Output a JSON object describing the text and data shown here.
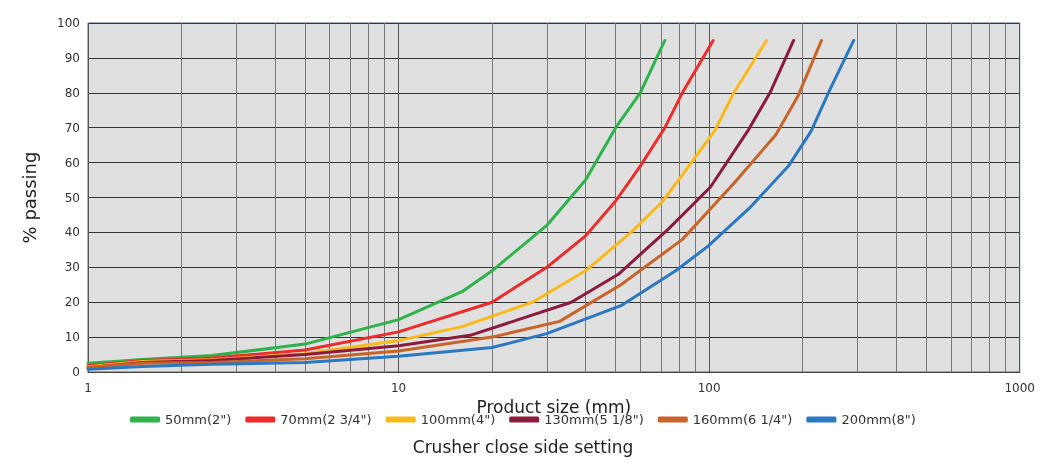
{
  "chart_data": {
    "type": "line",
    "xlabel": "Product size (mm)",
    "ylabel": "% passing",
    "legend_title": "Crusher close side setting",
    "log": "x",
    "xlim": [
      1,
      1000
    ],
    "xticks": [
      1,
      10,
      100,
      1000
    ],
    "ylim": [
      0,
      100
    ],
    "yticks": [
      0,
      10,
      20,
      30,
      40,
      50,
      60,
      70,
      80,
      90,
      100
    ],
    "grid": true,
    "legend": "bottom",
    "marker": "none",
    "line_style": "solid",
    "series": [
      {
        "name": "50mm(2\")",
        "color": "#2db34a",
        "x": [
          1,
          1.5,
          2.5,
          5,
          10,
          16,
          20,
          30,
          40,
          50,
          60,
          72
        ],
        "values": [
          2.5,
          3.6,
          4.7,
          8,
          15,
          23,
          29,
          42,
          55,
          70,
          80,
          95
        ]
      },
      {
        "name": "70mm(2 3/4\")",
        "color": "#ee2b2b",
        "x": [
          1,
          1.5,
          2.5,
          5,
          10,
          20,
          30,
          40,
          50,
          60,
          72,
          82,
          103
        ],
        "values": [
          1.8,
          3.3,
          4,
          6.3,
          11.5,
          20,
          30,
          39,
          49,
          59,
          70,
          80,
          95
        ]
      },
      {
        "name": "100mm(4\")",
        "color": "#fbb919",
        "x": [
          1,
          1.5,
          2.5,
          5,
          10,
          16,
          27,
          40,
          56,
          71,
          86,
          104,
          120,
          153
        ],
        "values": [
          1.5,
          3,
          3.5,
          5.2,
          9,
          13,
          20,
          29,
          40,
          49,
          59,
          69,
          80,
          95
        ]
      },
      {
        "name": "130mm(5 1/8\")",
        "color": "#8b1a3c",
        "x": [
          1,
          1.5,
          2.5,
          5,
          10,
          17,
          36,
          51,
          74,
          101,
          133,
          157,
          187
        ],
        "values": [
          1.2,
          2.7,
          3.3,
          5,
          7.5,
          10.5,
          20,
          28,
          41,
          53,
          69,
          80,
          95
        ]
      },
      {
        "name": "160mm(6 1/4\")",
        "color": "#c8632a",
        "x": [
          1,
          1.5,
          2.5,
          5,
          10,
          20,
          33,
          52,
          82,
          120,
          164,
          193,
          230
        ],
        "values": [
          1.3,
          2.5,
          2.7,
          3.8,
          6,
          10,
          14.5,
          25,
          38,
          54,
          68,
          79,
          95
        ]
      },
      {
        "name": "200mm(8\")",
        "color": "#2a78c2",
        "x": [
          1,
          1.5,
          2.5,
          5,
          10,
          20,
          30,
          52,
          78,
          99,
          135,
          180,
          213,
          245,
          292
        ],
        "values": [
          0.8,
          1.6,
          2.2,
          2.7,
          4.5,
          7,
          11,
          19,
          29,
          36,
          47,
          59,
          69,
          81,
          95
        ]
      }
    ]
  }
}
